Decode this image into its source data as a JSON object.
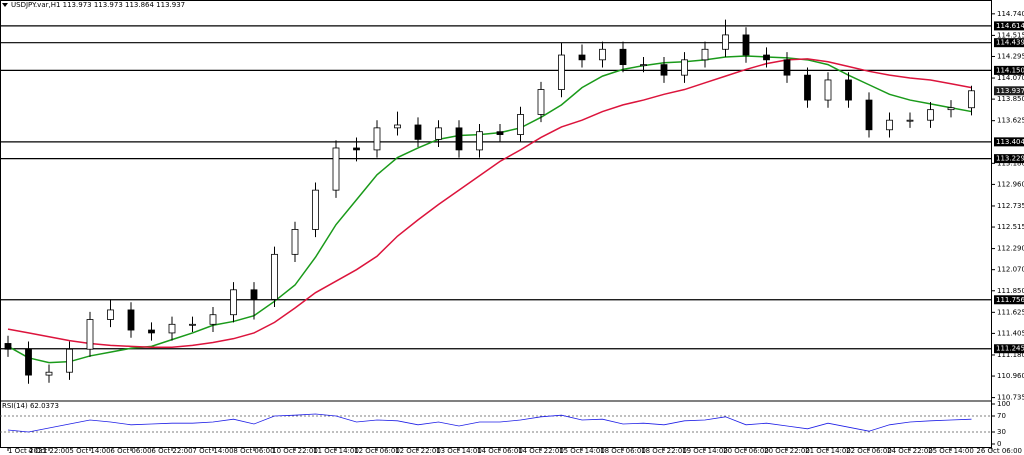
{
  "chart_data": [
    {
      "type": "candlestick",
      "title": "USDJPY.var,H1 113.973 113.973 113.864 113.937",
      "categories": [
        "1 Oct 2021",
        null,
        "4 Oct 22:00",
        null,
        "5 Oct 14:00",
        null,
        "6 Oct 06:00",
        null,
        "6 Oct 22:00",
        null,
        "7 Oct 14:00",
        null,
        "8 Oct 06:00",
        null,
        "10 Oct 22:00",
        null,
        "11 Oct 14:00",
        null,
        "12 Oct 06:00",
        null,
        "12 Oct 22:00",
        null,
        "13 Oct 14:00",
        null,
        "14 Oct 06:00",
        null,
        "14 Oct 22:00",
        null,
        "15 Oct 14:00",
        null,
        "18 Oct 06:00",
        null,
        "18 Oct 22:00",
        null,
        "19 Oct 14:00",
        null,
        "20 Oct 06:00",
        null,
        "20 Oct 22:00",
        null,
        "21 Oct 14:00",
        null,
        "22 Oct 06:00",
        null,
        "24 Oct 22:00",
        null,
        "25 Oct 14:00",
        null,
        "26 Oct 06:00"
      ],
      "open": [
        111.3,
        111.24,
        110.97,
        111.0,
        111.24,
        111.55,
        111.65,
        111.44,
        111.41,
        111.5,
        111.5,
        111.6,
        111.86,
        111.76,
        112.23,
        112.49,
        112.9,
        113.34,
        113.32,
        113.55,
        113.58,
        113.43,
        113.55,
        113.32,
        113.51,
        113.48,
        113.69,
        113.95,
        114.31,
        114.26,
        114.37,
        114.21,
        114.21,
        114.1,
        114.26,
        114.37,
        114.52,
        114.31,
        114.26,
        114.1,
        113.84,
        114.05,
        113.84,
        113.53,
        113.63,
        113.63,
        113.74,
        113.76,
        null
      ],
      "high": [
        111.38,
        111.32,
        111.08,
        111.32,
        111.63,
        111.76,
        111.73,
        111.52,
        111.58,
        111.58,
        111.68,
        111.94,
        111.94,
        112.31,
        112.57,
        112.98,
        113.42,
        113.45,
        113.63,
        113.72,
        113.66,
        113.63,
        113.63,
        113.59,
        113.59,
        113.77,
        114.03,
        114.44,
        114.42,
        114.45,
        114.45,
        114.29,
        114.29,
        114.34,
        114.45,
        114.68,
        114.6,
        114.39,
        114.34,
        114.18,
        114.13,
        114.13,
        113.92,
        113.71,
        113.71,
        113.82,
        113.84,
        113.99,
        null
      ],
      "low": [
        111.16,
        110.88,
        110.89,
        110.92,
        111.16,
        111.47,
        111.36,
        111.33,
        111.33,
        111.42,
        111.42,
        111.52,
        111.55,
        111.68,
        112.15,
        112.41,
        112.82,
        113.2,
        113.24,
        113.47,
        113.35,
        113.35,
        113.24,
        113.24,
        113.4,
        113.4,
        113.61,
        113.87,
        114.18,
        114.18,
        114.13,
        114.13,
        114.02,
        114.02,
        114.18,
        114.29,
        114.23,
        114.18,
        114.02,
        113.76,
        113.76,
        113.76,
        113.45,
        113.45,
        113.55,
        113.55,
        113.66,
        113.68,
        null
      ],
      "close": [
        111.24,
        110.97,
        111.0,
        111.24,
        111.55,
        111.65,
        111.44,
        111.41,
        111.5,
        111.5,
        111.6,
        111.86,
        111.76,
        112.23,
        112.49,
        112.9,
        113.34,
        113.32,
        113.55,
        113.58,
        113.43,
        113.55,
        113.32,
        113.51,
        113.48,
        113.69,
        113.95,
        114.31,
        114.26,
        114.37,
        114.21,
        114.21,
        114.1,
        114.26,
        114.37,
        114.52,
        114.31,
        114.26,
        114.1,
        113.84,
        114.05,
        113.84,
        113.53,
        113.63,
        113.63,
        113.74,
        113.76,
        113.937,
        null
      ],
      "ma_lines": [
        {
          "color": "#1a9a1a",
          "values": [
            111.27,
            111.15,
            111.1,
            111.11,
            111.17,
            111.21,
            111.25,
            111.27,
            111.34,
            111.41,
            111.49,
            111.53,
            111.59,
            111.74,
            111.91,
            112.2,
            112.54,
            112.8,
            113.06,
            113.24,
            113.34,
            113.43,
            113.47,
            113.48,
            113.5,
            113.55,
            113.66,
            113.79,
            113.97,
            114.09,
            114.16,
            114.2,
            114.23,
            114.24,
            114.26,
            114.29,
            114.3,
            114.29,
            114.28,
            114.26,
            114.21,
            114.1,
            114.0,
            113.9,
            113.84,
            113.8,
            113.76,
            113.72,
            null
          ]
        },
        {
          "color": "#dc143c",
          "values": [
            111.45,
            111.41,
            111.37,
            111.33,
            111.3,
            111.28,
            111.27,
            111.26,
            111.26,
            111.28,
            111.31,
            111.35,
            111.41,
            111.52,
            111.67,
            111.83,
            111.95,
            112.07,
            112.21,
            112.42,
            112.59,
            112.75,
            112.9,
            113.05,
            113.2,
            113.32,
            113.45,
            113.56,
            113.63,
            113.72,
            113.79,
            113.84,
            113.9,
            113.95,
            114.02,
            114.09,
            114.16,
            114.22,
            114.26,
            114.27,
            114.24,
            114.19,
            114.14,
            114.1,
            114.07,
            114.05,
            114.01,
            113.97,
            null
          ]
        }
      ],
      "levels": [
        114.614,
        114.439,
        {
          "value": 114.15,
          "label": "114.150"
        },
        113.404,
        113.229,
        111.756,
        111.245
      ],
      "price_label": 113.937,
      "ylim": [
        110.71,
        114.78
      ],
      "yticks": [
        {
          "value": 114.74,
          "label": "114.740"
        },
        114.515,
        114.295,
        {
          "value": 114.07,
          "label": "114.070"
        },
        {
          "value": 113.85,
          "label": "113.850"
        },
        113.625,
        {
          "value": 113.18,
          "label": "113.180"
        },
        {
          "value": 112.96,
          "label": "112.960"
        },
        112.735,
        112.515,
        {
          "value": 112.29,
          "label": "112.290"
        },
        {
          "value": 112.07,
          "label": "112.070"
        },
        {
          "value": 111.85,
          "label": "111.850"
        },
        111.625,
        111.405,
        {
          "value": 111.18,
          "label": "111.180"
        },
        {
          "value": 110.96,
          "label": "110.960"
        },
        110.735
      ]
    },
    {
      "type": "line",
      "title": "RSI(14) 62.0373",
      "color": "#1e1ee6",
      "values": [
        35,
        30,
        40,
        50,
        60,
        55,
        48,
        50,
        52,
        52,
        55,
        62,
        50,
        70,
        72,
        75,
        70,
        55,
        60,
        58,
        48,
        55,
        45,
        55,
        55,
        60,
        68,
        72,
        60,
        62,
        50,
        52,
        48,
        58,
        60,
        68,
        48,
        52,
        45,
        38,
        52,
        42,
        32,
        48,
        55,
        58,
        60,
        62,
        null
      ],
      "ylim": [
        0,
        100
      ],
      "yticks": [
        100,
        70,
        30,
        0
      ],
      "levels": [
        70,
        30
      ]
    }
  ]
}
